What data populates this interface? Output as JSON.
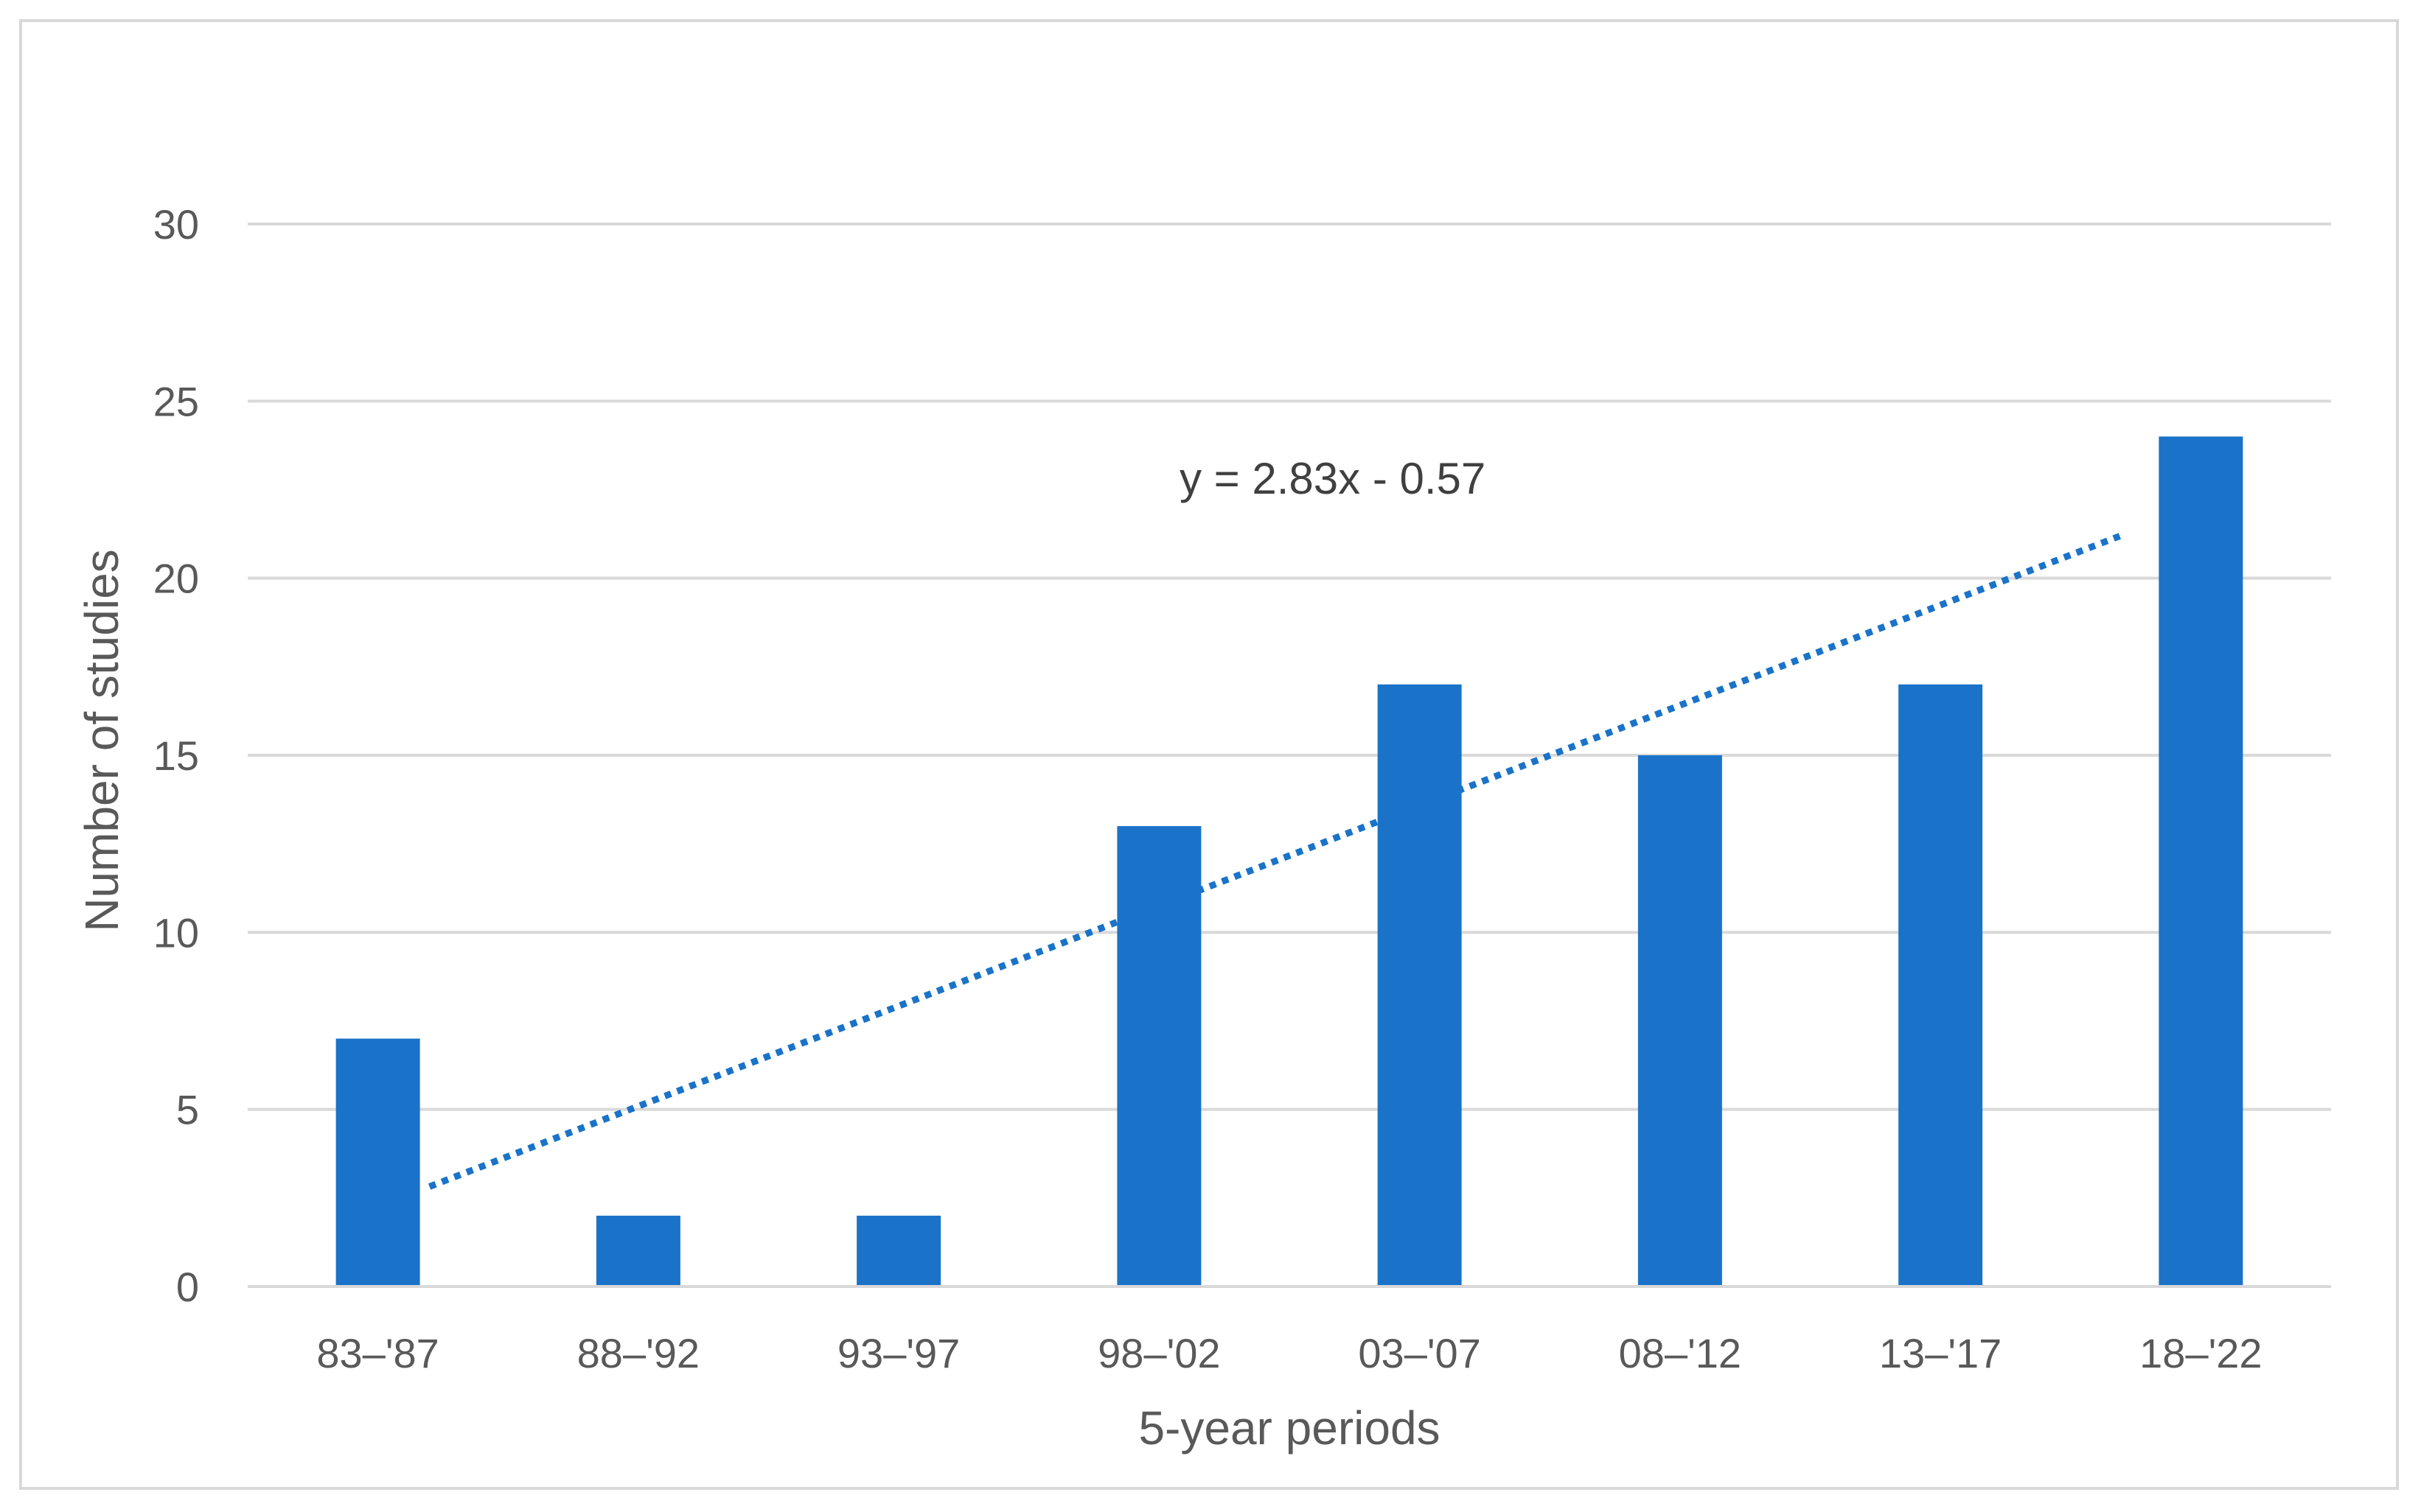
{
  "chart_data": {
    "type": "bar",
    "categories": [
      "83–'87",
      "88–'92",
      "93–'97",
      "98–'02",
      "03–'07",
      "08–'12",
      "13–'17",
      "18–'22"
    ],
    "series": [
      {
        "values": [
          7,
          2,
          2,
          13,
          17,
          15,
          17,
          24
        ]
      }
    ],
    "trendline": {
      "type": "linear",
      "slope": 2.83,
      "intercept": -0.57,
      "style": "dotted",
      "label": "y = 2.83x - 0.57"
    },
    "title": "",
    "xlabel": "5-year periods",
    "ylabel": "Number of studies",
    "ylim": [
      0,
      30
    ],
    "yticks": [
      "0",
      "5",
      "10",
      "15",
      "20",
      "25",
      "30"
    ],
    "grid": true,
    "legend": "none",
    "colors": {
      "bar": "#1a73c8",
      "trendline": "#1a73c8",
      "grid": "#d9d9d9",
      "text": "#595959"
    }
  }
}
